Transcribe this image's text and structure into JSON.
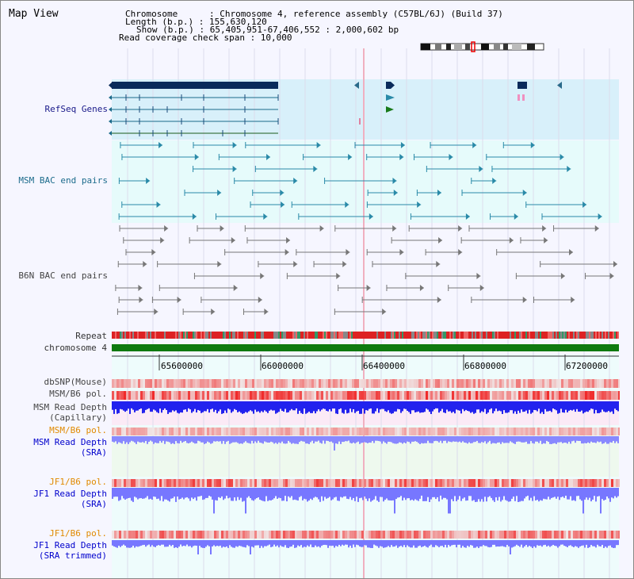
{
  "title": "Map View",
  "info": {
    "chromosome_label": "Chromosome      : Chromosome 4, reference assembly (C57BL/6J) (Build 37)",
    "length_label": "Length (b.p.) : 155,630,120",
    "show_label": "Show (b.p.) : 65,405,951-67,406,552 : 2,000,602 bp",
    "coverage_label": "Read coverage check span : 10,000"
  },
  "tracks": {
    "refseq": "RefSeq Genes",
    "msm_bac": "MSM BAC end pairs",
    "b6n_bac": "B6N BAC end pairs",
    "repeat": "Repeat",
    "chromosome": "chromosome 4",
    "dbsnp": "dbSNP(Mouse)",
    "msm_b6_pol_1": "MSM/B6 pol.",
    "msm_read_depth_cap_1": "MSM Read Depth",
    "msm_read_depth_cap_2": "(Capillary)",
    "msm_b6_pol_2": "MSM/B6 pol.",
    "msm_read_depth_sra_1": "MSM Read Depth",
    "msm_read_depth_sra_2": "(SRA)",
    "jf1_b6_pol_1": "JF1/B6 pol.",
    "jf1_read_depth_sra_1": "JF1 Read Depth",
    "jf1_read_depth_sra_2": "(SRA)",
    "jf1_b6_pol_2": "JF1/B6 pol.",
    "jf1_read_depth_trim_1": "JF1 Read Depth",
    "jf1_read_depth_trim_2": "(SRA trimmed)"
  },
  "axis": {
    "ticks": [
      "65600000",
      "66000000",
      "66400000",
      "66800000",
      "67200000"
    ]
  },
  "colors": {
    "refseq_bg": "#d8f0fa",
    "bac_bg": "#e6fbfb",
    "navy_gene": "#0a2a5a",
    "teal_feature": "#2a8aa8",
    "gray_feature": "#777777",
    "chromosome_bar": "#0f7a0f",
    "depth_blue": "#2222ee",
    "depth_light": "#8888ff",
    "pol_red": "#ee2222"
  }
}
